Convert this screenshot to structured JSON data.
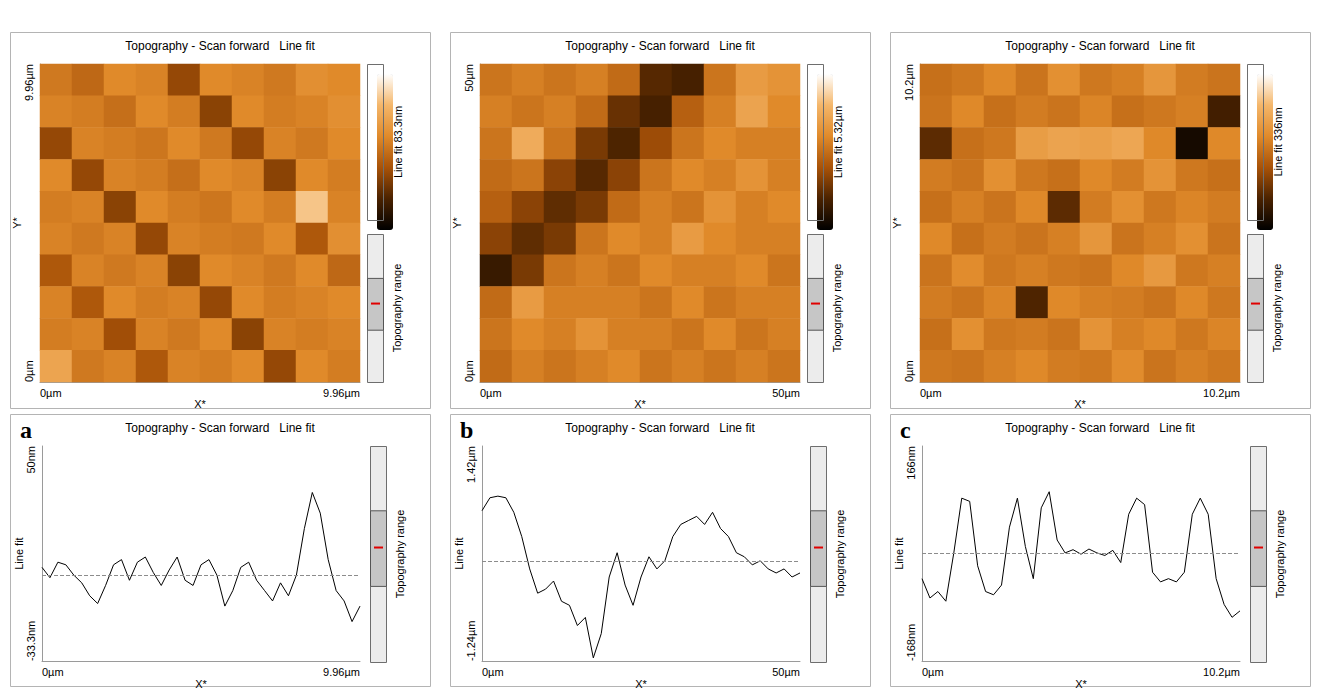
{
  "chart_data": [
    {
      "type": "heatmap",
      "panel": "a",
      "title": "Topography - Scan forward   Line fit",
      "x_label": "X*",
      "y_label": "Y*",
      "xlim": [
        0,
        9.96
      ],
      "xticks": [
        {
          "value": 0,
          "label": "0µm"
        },
        {
          "value": 9.96,
          "label": "9.96µm"
        }
      ],
      "ylim": [
        0,
        9.96
      ],
      "yticks": [
        {
          "value": 0,
          "label": "0µm"
        },
        {
          "value": 9.96,
          "label": "9.96µm"
        }
      ],
      "cells": [
        [
          45,
          40,
          50,
          48,
          30,
          50,
          48,
          45,
          52,
          50
        ],
        [
          48,
          46,
          42,
          50,
          46,
          28,
          50,
          46,
          48,
          52
        ],
        [
          30,
          48,
          46,
          44,
          50,
          45,
          30,
          48,
          45,
          50
        ],
        [
          50,
          30,
          48,
          46,
          42,
          50,
          48,
          28,
          50,
          46
        ],
        [
          46,
          48,
          28,
          50,
          46,
          44,
          50,
          46,
          70,
          48
        ],
        [
          48,
          45,
          48,
          30,
          48,
          46,
          45,
          50,
          35,
          52
        ],
        [
          35,
          48,
          45,
          48,
          28,
          50,
          48,
          45,
          50,
          40
        ],
        [
          48,
          35,
          50,
          46,
          48,
          30,
          50,
          46,
          48,
          50
        ],
        [
          46,
          48,
          32,
          48,
          45,
          50,
          28,
          48,
          46,
          48
        ],
        [
          60,
          45,
          48,
          35,
          48,
          46,
          50,
          30,
          50,
          46
        ]
      ],
      "colorbar_label": "Line fit 83.3nm",
      "colorbar_range": [
        0,
        83.3
      ],
      "range_label": "Topography range"
    },
    {
      "type": "line",
      "panel": "a",
      "title": "Topography - Scan forward   Line fit",
      "x_label": "X*",
      "y_label": "Line fit",
      "x": [
        0,
        0.249,
        0.498,
        0.747,
        0.996,
        1.245,
        1.494,
        1.743,
        1.992,
        2.241,
        2.49,
        2.739,
        2.988,
        3.237,
        3.486,
        3.735,
        3.984,
        4.233,
        4.482,
        4.731,
        4.98,
        5.229,
        5.478,
        5.727,
        5.976,
        6.225,
        6.474,
        6.723,
        6.972,
        7.221,
        7.47,
        7.719,
        7.968,
        8.217,
        8.466,
        8.715,
        8.964,
        9.213,
        9.462,
        9.711,
        9.96
      ],
      "values": [
        3,
        -1,
        5,
        4,
        0,
        -3,
        -8,
        -11,
        -4,
        4,
        6,
        -2,
        5,
        7,
        1,
        -4,
        2,
        7,
        -2,
        -4,
        4,
        6,
        0,
        -12,
        -6,
        3,
        5,
        -2,
        -6,
        -10,
        -3,
        -8,
        0,
        18,
        32,
        24,
        6,
        -6,
        -10,
        -18,
        -12
      ],
      "xlim": [
        0,
        9.96
      ],
      "xticks": [
        {
          "value": 0,
          "label": "0µm"
        },
        {
          "value": 9.96,
          "label": "9.96µm"
        }
      ],
      "ylim": [
        -33.3,
        50
      ],
      "yticks": [
        {
          "value": -33.3,
          "label": "-33.3nm"
        },
        {
          "value": 50,
          "label": "50nm"
        }
      ],
      "baseline": 0,
      "color": "#000000",
      "range_label": "Topography range"
    },
    {
      "type": "heatmap",
      "panel": "b",
      "title": "Topography - Scan forward   Line fit",
      "x_label": "X*",
      "y_label": "Y*",
      "xlim": [
        0,
        50
      ],
      "xticks": [
        {
          "value": 0,
          "label": "0µm"
        },
        {
          "value": 50,
          "label": "50µm"
        }
      ],
      "ylim": [
        0,
        50
      ],
      "yticks": [
        {
          "value": 0,
          "label": "0µm"
        },
        {
          "value": 50,
          "label": "50µm"
        }
      ],
      "cells": [
        [
          2.8,
          3.0,
          2.8,
          3.0,
          2.6,
          1.2,
          1.0,
          2.8,
          3.6,
          3.4
        ],
        [
          3.0,
          2.8,
          3.0,
          2.6,
          1.4,
          1.0,
          2.4,
          3.0,
          3.8,
          3.2
        ],
        [
          2.8,
          4.0,
          2.8,
          1.6,
          1.1,
          2.0,
          2.8,
          3.2,
          3.0,
          3.0
        ],
        [
          2.6,
          2.8,
          1.8,
          1.2,
          1.8,
          2.8,
          3.2,
          3.0,
          3.4,
          3.0
        ],
        [
          2.4,
          1.8,
          1.3,
          1.6,
          2.6,
          3.0,
          2.8,
          3.4,
          3.0,
          3.2
        ],
        [
          1.8,
          1.3,
          1.6,
          2.8,
          3.2,
          3.0,
          3.6,
          3.2,
          3.0,
          3.0
        ],
        [
          0.8,
          1.6,
          2.8,
          3.0,
          2.8,
          3.2,
          3.0,
          3.0,
          3.2,
          2.8
        ],
        [
          2.6,
          3.6,
          3.0,
          3.0,
          3.0,
          2.8,
          3.2,
          2.8,
          3.0,
          3.0
        ],
        [
          2.8,
          3.2,
          3.0,
          3.4,
          3.0,
          3.0,
          2.8,
          3.2,
          2.8,
          3.0
        ],
        [
          2.6,
          3.0,
          2.8,
          3.0,
          3.2,
          2.8,
          3.0,
          2.8,
          3.0,
          2.8
        ]
      ],
      "colorbar_label": "Line fit 5.32µm",
      "colorbar_range": [
        0,
        5.32
      ],
      "range_label": "Topography range"
    },
    {
      "type": "line",
      "panel": "b",
      "title": "Topography - Scan forward   Line fit",
      "x_label": "X*",
      "y_label": "Line fit",
      "x": [
        0,
        1.25,
        2.5,
        3.75,
        5,
        6.25,
        7.5,
        8.75,
        10,
        11.25,
        12.5,
        13.75,
        15,
        16.25,
        17.5,
        18.75,
        20,
        21.25,
        22.5,
        23.75,
        25,
        26.25,
        27.5,
        28.75,
        30,
        31.25,
        32.5,
        33.75,
        35,
        36.25,
        37.5,
        38.75,
        40,
        41.25,
        42.5,
        43.75,
        45,
        46.25,
        47.5,
        48.75,
        50
      ],
      "values": [
        0.62,
        0.78,
        0.8,
        0.78,
        0.6,
        0.3,
        -0.1,
        -0.4,
        -0.35,
        -0.25,
        -0.5,
        -0.55,
        -0.8,
        -0.7,
        -1.2,
        -0.9,
        -0.2,
        0.1,
        -0.3,
        -0.55,
        -0.2,
        0.05,
        -0.1,
        0.0,
        0.3,
        0.45,
        0.5,
        0.55,
        0.45,
        0.6,
        0.4,
        0.3,
        0.1,
        0.05,
        -0.05,
        0.0,
        -0.1,
        -0.15,
        -0.1,
        -0.2,
        -0.15
      ],
      "xlim": [
        0,
        50
      ],
      "xticks": [
        {
          "value": 0,
          "label": "0µm"
        },
        {
          "value": 50,
          "label": "50µm"
        }
      ],
      "ylim": [
        -1.24,
        1.42
      ],
      "yticks": [
        {
          "value": -1.24,
          "label": "-1.24µm"
        },
        {
          "value": 1.42,
          "label": "1.42µm"
        }
      ],
      "baseline": 0,
      "color": "#000000",
      "range_label": "Topography range"
    },
    {
      "type": "heatmap",
      "panel": "c",
      "title": "Topography - Scan forward   Line fit",
      "x_label": "X*",
      "y_label": "Y*",
      "xlim": [
        0,
        10.2
      ],
      "xticks": [
        {
          "value": 0,
          "label": "0µm"
        },
        {
          "value": 10.2,
          "label": "10.2µm"
        }
      ],
      "ylim": [
        0,
        10.2
      ],
      "yticks": [
        {
          "value": 0,
          "label": "0µm"
        },
        {
          "value": 10.2,
          "label": "10.2µm"
        }
      ],
      "cells": [
        [
          170,
          180,
          200,
          175,
          210,
          180,
          190,
          220,
          185,
          175
        ],
        [
          175,
          200,
          170,
          185,
          175,
          195,
          170,
          180,
          190,
          60
        ],
        [
          80,
          170,
          180,
          230,
          240,
          235,
          245,
          200,
          20,
          200
        ],
        [
          185,
          175,
          210,
          180,
          170,
          200,
          185,
          215,
          180,
          170
        ],
        [
          170,
          190,
          175,
          200,
          80,
          185,
          210,
          180,
          195,
          185
        ],
        [
          200,
          170,
          185,
          175,
          190,
          220,
          175,
          190,
          210,
          175
        ],
        [
          175,
          205,
          180,
          190,
          180,
          175,
          200,
          225,
          180,
          190
        ],
        [
          185,
          175,
          195,
          70,
          200,
          190,
          185,
          175,
          200,
          180
        ],
        [
          170,
          210,
          180,
          185,
          175,
          215,
          190,
          200,
          180,
          195
        ],
        [
          180,
          175,
          190,
          200,
          185,
          180,
          205,
          175,
          190,
          180
        ]
      ],
      "colorbar_label": "Line fit 336nm",
      "colorbar_range": [
        0,
        336
      ],
      "range_label": "Topography range"
    },
    {
      "type": "line",
      "panel": "c",
      "title": "Topography - Scan forward   Line fit",
      "x_label": "X*",
      "y_label": "Line fit",
      "x": [
        0,
        0.255,
        0.51,
        0.765,
        1.02,
        1.275,
        1.53,
        1.785,
        2.04,
        2.295,
        2.55,
        2.805,
        3.06,
        3.315,
        3.57,
        3.825,
        4.08,
        4.335,
        4.59,
        4.845,
        5.1,
        5.355,
        5.61,
        5.865,
        6.12,
        6.375,
        6.63,
        6.885,
        7.14,
        7.395,
        7.65,
        7.905,
        8.16,
        8.415,
        8.67,
        8.925,
        9.18,
        9.435,
        9.69,
        9.945,
        10.2
      ],
      "values": [
        -40,
        -70,
        -60,
        -75,
        0,
        85,
        80,
        -20,
        -60,
        -65,
        -50,
        40,
        85,
        10,
        -40,
        70,
        95,
        20,
        0,
        5,
        -2,
        6,
        0,
        -4,
        4,
        -15,
        60,
        85,
        75,
        -30,
        -45,
        -40,
        -45,
        -30,
        60,
        85,
        60,
        -40,
        -80,
        -100,
        -90
      ],
      "xlim": [
        0,
        10.2
      ],
      "xticks": [
        {
          "value": 0,
          "label": "0µm"
        },
        {
          "value": 10.2,
          "label": "10.2µm"
        }
      ],
      "ylim": [
        -168,
        166
      ],
      "yticks": [
        {
          "value": -168,
          "label": "-168nm"
        },
        {
          "value": 166,
          "label": "166nm"
        }
      ],
      "baseline": 0,
      "color": "#000000",
      "range_label": "Topography range"
    }
  ]
}
